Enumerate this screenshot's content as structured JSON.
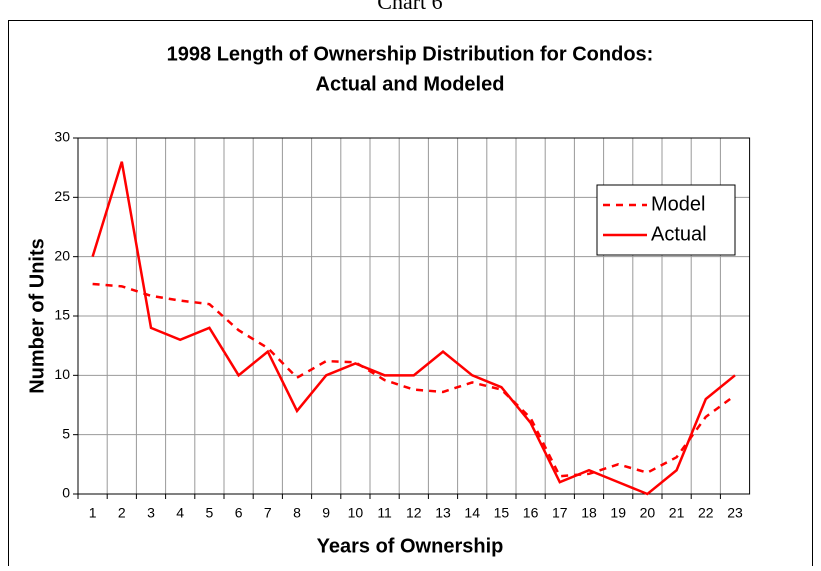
{
  "page_label": "Chart 6",
  "chart_data": {
    "type": "line",
    "title": [
      "1998 Length of Ownership Distribution for Condos:",
      "Actual and Modeled"
    ],
    "x_label": "Years of Ownership",
    "y_label": "Number of Units",
    "categories": [
      "1",
      "2",
      "3",
      "4",
      "5",
      "6",
      "7",
      "8",
      "9",
      "10",
      "11",
      "12",
      "13",
      "14",
      "15",
      "16",
      "17",
      "18",
      "19",
      "20",
      "21",
      "22",
      "23"
    ],
    "series": [
      {
        "name": "Model",
        "color": "#ff0000",
        "line_style": "dashed",
        "values": [
          17.7,
          17.5,
          16.7,
          16.3,
          16,
          13.8,
          12.3,
          9.8,
          11.2,
          11.1,
          9.6,
          8.8,
          8.6,
          9.4,
          8.8,
          6.4,
          1.5,
          1.7,
          2.5,
          1.8,
          3.1,
          6.5,
          8.3
        ]
      },
      {
        "name": "Actual",
        "color": "#ff0000",
        "line_style": "solid",
        "values": [
          20,
          28,
          14,
          13,
          14,
          10,
          12,
          7,
          10,
          11,
          10,
          10,
          12,
          10,
          9,
          6,
          1,
          2,
          1,
          0,
          2,
          8,
          10
        ]
      }
    ],
    "ylim": [
      0,
      30
    ],
    "yticks": [
      0,
      5,
      10,
      15,
      20,
      25,
      30
    ],
    "grid": true,
    "legend": "upper right"
  }
}
